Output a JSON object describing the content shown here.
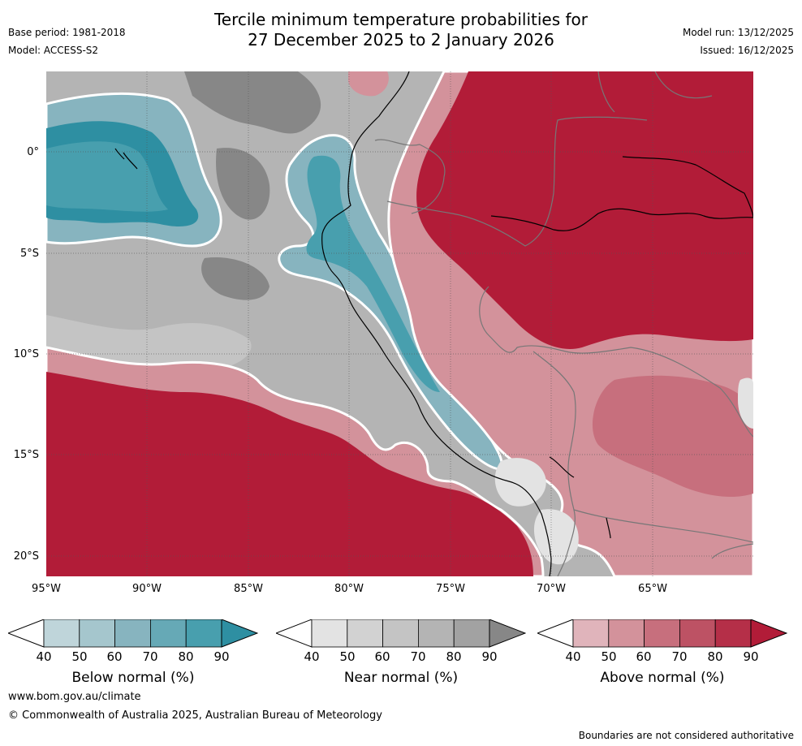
{
  "header": {
    "title_line1": "Tercile minimum temperature probabilities for",
    "title_line2": "27 December 2025 to 2 January 2026",
    "base_period": "Base period: 1981-2018",
    "model": "Model: ACCESS-S2",
    "model_run": "Model run: 13/12/2025",
    "issued": "Issued: 16/12/2025"
  },
  "map": {
    "lat_labels": [
      "0°",
      "5°S",
      "10°S",
      "15°S",
      "20°S"
    ],
    "lon_labels": [
      "95°W",
      "90°W",
      "85°W",
      "80°W",
      "75°W",
      "70°W",
      "65°W"
    ]
  },
  "colorbars": [
    {
      "label": "Below normal (%)",
      "ticks": [
        "40",
        "50",
        "60",
        "70",
        "80",
        "90"
      ],
      "colors": [
        "#bfd5da",
        "#a5c6cd",
        "#87b4bf",
        "#66a9b6",
        "#489fae",
        "#2e8fa2"
      ]
    },
    {
      "label": "Near normal (%)",
      "ticks": [
        "40",
        "50",
        "60",
        "70",
        "80",
        "90"
      ],
      "colors": [
        "#e3e3e3",
        "#d2d2d2",
        "#c4c4c4",
        "#b4b4b4",
        "#a2a2a2",
        "#878787"
      ]
    },
    {
      "label": "Above normal (%)",
      "ticks": [
        "40",
        "50",
        "60",
        "70",
        "80",
        "90"
      ],
      "colors": [
        "#e0b4bb",
        "#d3929b",
        "#c76f7d",
        "#bd5264",
        "#b52f48",
        "#b21c38"
      ]
    }
  ],
  "footer": {
    "url": "www.bom.gov.au/climate",
    "copyright": "© Commonwealth of Australia 2025, Australian Bureau of Meteorology",
    "disclaimer": "Boundaries are not considered authoritative"
  }
}
